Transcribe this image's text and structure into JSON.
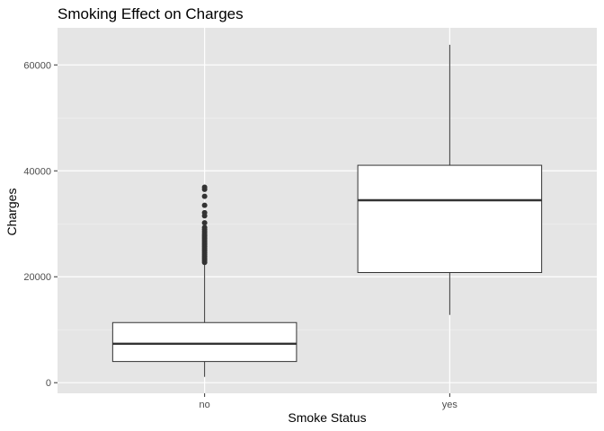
{
  "chart_data": {
    "type": "boxplot",
    "title": "Smoking Effect on Charges",
    "xlabel": "Smoke Status",
    "ylabel": "Charges",
    "categories": [
      "no",
      "yes"
    ],
    "ylim": [
      -2000,
      67000
    ],
    "yticks": [
      0,
      20000,
      40000,
      60000
    ],
    "ytick_labels": [
      "0",
      "20000",
      "40000",
      "60000"
    ],
    "grid": true,
    "colors": {
      "panel": "#e5e5e5",
      "grid_major": "#ffffff",
      "grid_minor": "#f2f2f2",
      "box_fill": "#ffffff",
      "box_stroke": "#333333",
      "outlier": "#333333"
    },
    "boxes": [
      {
        "category": "no",
        "whisker_low": 1100,
        "q1": 4000,
        "median": 7350,
        "q3": 11350,
        "whisker_high": 22400,
        "outliers": [
          22700,
          23000,
          23300,
          23600,
          23900,
          24200,
          24500,
          24800,
          25100,
          25400,
          25700,
          26000,
          26300,
          26600,
          26900,
          27200,
          27500,
          27800,
          28100,
          28500,
          28900,
          29300,
          30200,
          31500,
          32100,
          33500,
          35200,
          36500,
          36900
        ]
      },
      {
        "category": "yes",
        "whisker_low": 12800,
        "q1": 20800,
        "median": 34450,
        "q3": 41050,
        "whisker_high": 63800,
        "outliers": []
      }
    ]
  }
}
